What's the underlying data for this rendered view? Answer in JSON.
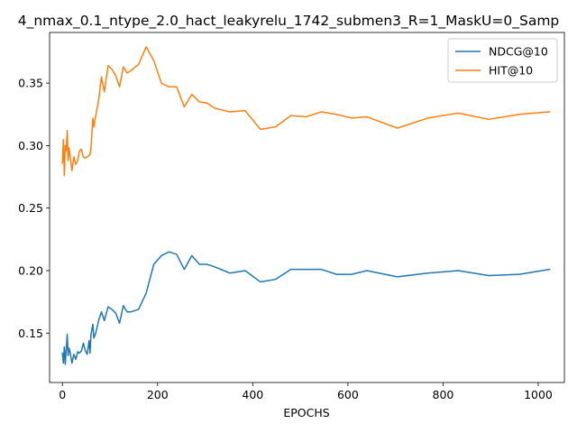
{
  "chart_data": {
    "type": "line",
    "title": "4_nmax_0.1_ntype_2.0_hact_leakyrelu_1742_submen3_R=1_MaskU=0_Samp",
    "xlabel": "EPOCHS",
    "ylabel": "",
    "xlim": [
      -27,
      1055
    ],
    "ylim": [
      0.1105,
      0.3905
    ],
    "xticks": [
      0,
      200,
      400,
      600,
      800,
      1000
    ],
    "yticks": [
      0.15,
      0.2,
      0.25,
      0.3,
      0.35
    ],
    "ytick_labels": [
      "0.15",
      "0.20",
      "0.25",
      "0.30",
      "0.35"
    ],
    "grid": false,
    "legend_position": "top-right",
    "series": [
      {
        "name": "NDCG@10",
        "color": "#1f77b4",
        "x": [
          0,
          2,
          4,
          6,
          8,
          10,
          12,
          14,
          16,
          20,
          24,
          28,
          32,
          36,
          40,
          44,
          48,
          52,
          56,
          58,
          60,
          64,
          66,
          70,
          76,
          82,
          88,
          96,
          104,
          112,
          120,
          128,
          136,
          144,
          160,
          176,
          192,
          208,
          224,
          240,
          256,
          272,
          288,
          304,
          320,
          352,
          384,
          416,
          448,
          480,
          512,
          544,
          576,
          608,
          640,
          704,
          768,
          832,
          896,
          960,
          1024
        ],
        "y": [
          0.134,
          0.126,
          0.139,
          0.125,
          0.137,
          0.149,
          0.132,
          0.138,
          0.135,
          0.126,
          0.133,
          0.129,
          0.135,
          0.134,
          0.136,
          0.142,
          0.136,
          0.133,
          0.144,
          0.134,
          0.149,
          0.157,
          0.146,
          0.15,
          0.16,
          0.167,
          0.16,
          0.171,
          0.169,
          0.166,
          0.158,
          0.172,
          0.167,
          0.167,
          0.169,
          0.182,
          0.205,
          0.212,
          0.215,
          0.213,
          0.201,
          0.212,
          0.205,
          0.205,
          0.203,
          0.198,
          0.2,
          0.191,
          0.193,
          0.201,
          0.201,
          0.201,
          0.197,
          0.197,
          0.2,
          0.195,
          0.198,
          0.2,
          0.196,
          0.197,
          0.201
        ]
      },
      {
        "name": "HIT@10",
        "color": "#ff7f0e",
        "x": [
          0,
          2,
          4,
          6,
          8,
          10,
          12,
          14,
          16,
          20,
          24,
          28,
          32,
          36,
          40,
          44,
          48,
          52,
          56,
          58,
          60,
          64,
          66,
          70,
          76,
          82,
          88,
          96,
          104,
          112,
          120,
          128,
          136,
          144,
          160,
          176,
          192,
          208,
          224,
          240,
          256,
          272,
          288,
          304,
          320,
          352,
          384,
          416,
          448,
          480,
          512,
          544,
          576,
          608,
          640,
          704,
          768,
          832,
          896,
          960,
          1024
        ],
        "y": [
          0.286,
          0.305,
          0.276,
          0.3,
          0.296,
          0.312,
          0.288,
          0.298,
          0.292,
          0.28,
          0.291,
          0.285,
          0.288,
          0.296,
          0.297,
          0.291,
          0.29,
          0.291,
          0.292,
          0.293,
          0.298,
          0.322,
          0.315,
          0.324,
          0.336,
          0.355,
          0.343,
          0.364,
          0.361,
          0.356,
          0.347,
          0.363,
          0.358,
          0.36,
          0.365,
          0.379,
          0.368,
          0.35,
          0.347,
          0.347,
          0.331,
          0.341,
          0.335,
          0.334,
          0.33,
          0.327,
          0.328,
          0.313,
          0.315,
          0.324,
          0.323,
          0.327,
          0.325,
          0.322,
          0.323,
          0.314,
          0.322,
          0.326,
          0.321,
          0.325,
          0.327
        ]
      }
    ]
  }
}
